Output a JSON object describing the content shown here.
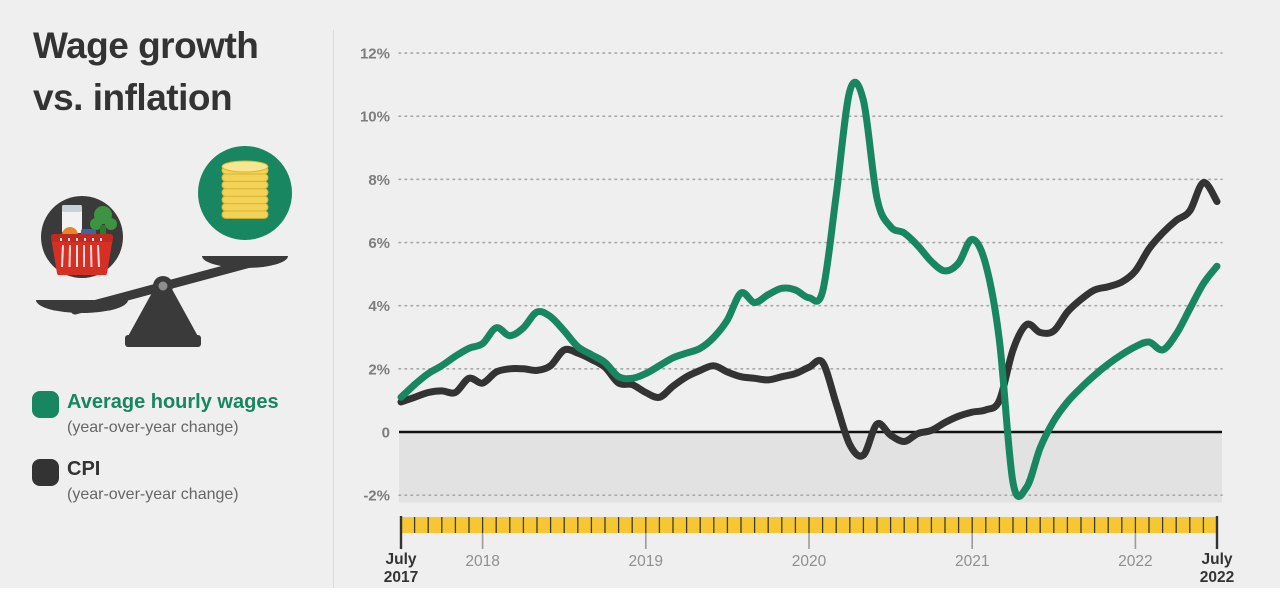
{
  "panel": {
    "title_line1": "Wage growth",
    "title_line2": "vs. inflation",
    "legend": [
      {
        "label": "Average hourly wages",
        "sublabel": "(year-over-year change)",
        "color": "#178661"
      },
      {
        "label": "CPI",
        "sublabel": "(year-over-year change)",
        "color": "#333333"
      }
    ]
  },
  "chart": {
    "y_axis": [
      {
        "value": 12,
        "label": "12%"
      },
      {
        "value": 10,
        "label": "10%"
      },
      {
        "value": 8,
        "label": "8%"
      },
      {
        "value": 6,
        "label": "6%"
      },
      {
        "value": 4,
        "label": "4%"
      },
      {
        "value": 2,
        "label": "2%"
      },
      {
        "value": 0,
        "label": "0"
      },
      {
        "value": -2,
        "label": "-2%"
      }
    ],
    "x_axis": {
      "start": {
        "line1": "July",
        "line2": "2017",
        "month": 0
      },
      "end": {
        "line1": "July",
        "line2": "2022",
        "month": 60
      },
      "years": [
        {
          "label": "2018",
          "month": 6
        },
        {
          "label": "2019",
          "month": 18
        },
        {
          "label": "2020",
          "month": 30
        },
        {
          "label": "2021",
          "month": 42
        },
        {
          "label": "2022",
          "month": 54
        }
      ]
    }
  },
  "chart_data": {
    "type": "line",
    "title": "Wage growth vs. inflation",
    "x_unit": "month",
    "frequency": "monthly",
    "x_start": "Jul 2017",
    "x_end": "Jul 2022",
    "ylim": [
      -2.5,
      12.5
    ],
    "y_format": "percent",
    "grid": "horizontal-dotted",
    "zero_line": true,
    "below_zero_shaded": true,
    "series": [
      {
        "name": "Average hourly wages (year-over-year change)",
        "color": "#178661",
        "values": [
          1.1,
          1.5,
          1.85,
          2.1,
          2.4,
          2.65,
          2.8,
          3.3,
          3.05,
          3.3,
          3.8,
          3.65,
          3.2,
          2.7,
          2.45,
          2.2,
          1.75,
          1.7,
          1.85,
          2.1,
          2.35,
          2.5,
          2.65,
          3.0,
          3.55,
          4.4,
          4.1,
          4.35,
          4.55,
          4.5,
          4.25,
          4.45,
          7.5,
          10.8,
          10.5,
          7.4,
          6.5,
          6.3,
          5.9,
          5.4,
          5.1,
          5.35,
          6.1,
          5.3,
          2.9,
          -1.6,
          -1.75,
          -0.5,
          0.35,
          0.95,
          1.4,
          1.8,
          2.15,
          2.45,
          2.7,
          2.85,
          2.6,
          3.1,
          3.9,
          4.7,
          5.25
        ]
      },
      {
        "name": "CPI (year-over-year change)",
        "color": "#333333",
        "values": [
          0.95,
          1.1,
          1.25,
          1.3,
          1.25,
          1.7,
          1.55,
          1.9,
          2.0,
          2.0,
          1.95,
          2.1,
          2.6,
          2.5,
          2.3,
          2.05,
          1.55,
          1.5,
          1.25,
          1.1,
          1.45,
          1.75,
          1.95,
          2.1,
          1.9,
          1.75,
          1.7,
          1.65,
          1.75,
          1.85,
          2.05,
          2.2,
          0.9,
          -0.4,
          -0.73,
          0.25,
          -0.1,
          -0.3,
          -0.05,
          0.05,
          0.3,
          0.5,
          0.63,
          0.7,
          1.0,
          2.6,
          3.4,
          3.15,
          3.2,
          3.8,
          4.2,
          4.5,
          4.6,
          4.75,
          5.1,
          5.8,
          6.3,
          6.7,
          7.0,
          7.9,
          7.3
        ]
      }
    ]
  },
  "colors": {
    "background": "#efefef",
    "wages_green": "#178661",
    "cpi_dark": "#333333",
    "ruler_gold": "#f6c733",
    "ruler_tick": "#3e3c33",
    "year_tick": "#9b9b9b",
    "below_zero_band": "#e2e2e2",
    "gridline": "#a8a8a8",
    "zero_line": "#111111",
    "axis_label": "#7d7d7d",
    "year_label": "#8f8f8f"
  }
}
